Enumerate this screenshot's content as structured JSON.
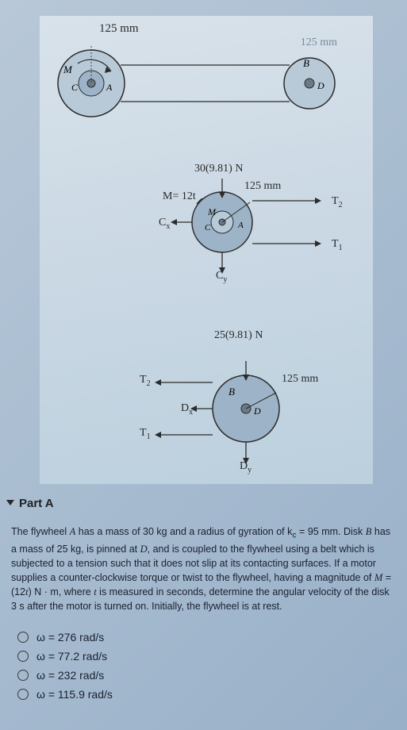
{
  "figure": {
    "dim_top": "125 mm",
    "dim_top_right": "125 mm",
    "top_left_pulley": {
      "labels": [
        "M",
        "C",
        "A"
      ]
    },
    "top_right_pulley": {
      "labels": [
        "B",
        "D"
      ]
    },
    "fbd_a": {
      "weight_label": "30(9.81) N",
      "moment_label": "M= 12t",
      "radius_label": "125 mm",
      "Cx": "C",
      "Cx_sub": "x",
      "Cy": "C",
      "Cy_sub": "y",
      "T1": "T",
      "T1_sub": "1",
      "T2": "T",
      "T2_sub": "2",
      "inner_labels": [
        "M",
        "C",
        "A"
      ]
    },
    "fbd_b": {
      "weight_label": "25(9.81) N",
      "radius_label": "125 mm",
      "Dx": "D",
      "Dx_sub": "x",
      "Dy": "D",
      "Dy_sub": "y",
      "T1": "T",
      "T1_sub": "1",
      "T2": "T",
      "T2_sub": "2",
      "inner_labels": [
        "B",
        "D"
      ]
    },
    "colors": {
      "stroke": "#2b2b2b",
      "pulley_fill": "#9db4c8",
      "pulley_fill_light": "#b8cad8",
      "hub_fill": "#6a7a88"
    }
  },
  "partA": {
    "title": "Part A",
    "text_parts": [
      "The flywheel ",
      {
        "i": "A"
      },
      " has a mass of 30 kg and a radius of gyration of k",
      {
        "sub": "c"
      },
      " = 95 mm. Disk ",
      {
        "i": "B"
      },
      " has a mass of 25 kg, is pinned at ",
      {
        "i": "D"
      },
      ", and is coupled to the flywheel using a belt which is subjected to a tension such that it does not slip at its contacting surfaces. If a motor supplies a counter-clockwise torque or twist to the flywheel, having a magnitude of ",
      {
        "i": "M"
      },
      " = (12",
      {
        "i": "t"
      },
      ") N · m, where ",
      {
        "i": "t"
      },
      " is measured in seconds, determine the angular velocity of the disk 3 s after the motor is turned on. Initially, the flywheel is at rest."
    ],
    "options": [
      "ω = 276 rad/s",
      "ω = 77.2 rad/s",
      "ω = 232 rad/s",
      "ω = 115.9 rad/s"
    ]
  }
}
